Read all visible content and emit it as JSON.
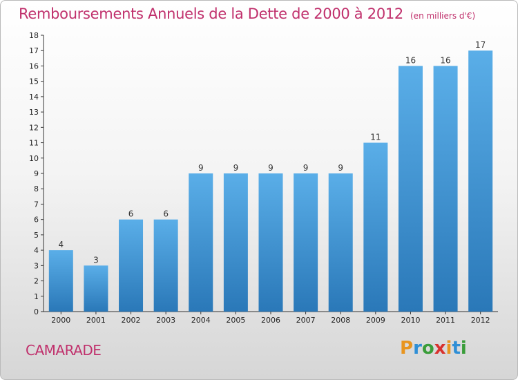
{
  "title": "Remboursements Annuels de la Dette de 2000 à 2012",
  "unit": "(en milliers d'€)",
  "commune": "CAMARADE",
  "logo": {
    "text": "Proxiti",
    "letters": [
      {
        "char": "P",
        "color": "#e8951f"
      },
      {
        "char": "r",
        "color": "#2f8fd6"
      },
      {
        "char": "o",
        "color": "#3a9d3a"
      },
      {
        "char": "x",
        "color": "#d8322e"
      },
      {
        "char": "i",
        "color": "#e8951f"
      },
      {
        "char": "t",
        "color": "#2f8fd6"
      },
      {
        "char": "i",
        "color": "#3a9d3a"
      }
    ]
  },
  "chart_data": {
    "type": "bar",
    "title": "Remboursements Annuels de la Dette de 2000 à 2012",
    "categories": [
      "2000",
      "2001",
      "2002",
      "2003",
      "2004",
      "2005",
      "2006",
      "2007",
      "2008",
      "2009",
      "2010",
      "2011",
      "2012"
    ],
    "values": [
      4,
      3,
      6,
      6,
      9,
      9,
      9,
      9,
      9,
      11,
      16,
      16,
      17
    ],
    "xlabel": "",
    "ylabel": "",
    "ylim": [
      0,
      18
    ],
    "yticks": [
      0,
      1,
      2,
      3,
      4,
      5,
      6,
      7,
      8,
      9,
      10,
      11,
      12,
      13,
      14,
      15,
      16,
      17,
      18
    ],
    "grid": false,
    "bar_color_top": "#5aaee8",
    "bar_color_bottom": "#2a78b8"
  }
}
